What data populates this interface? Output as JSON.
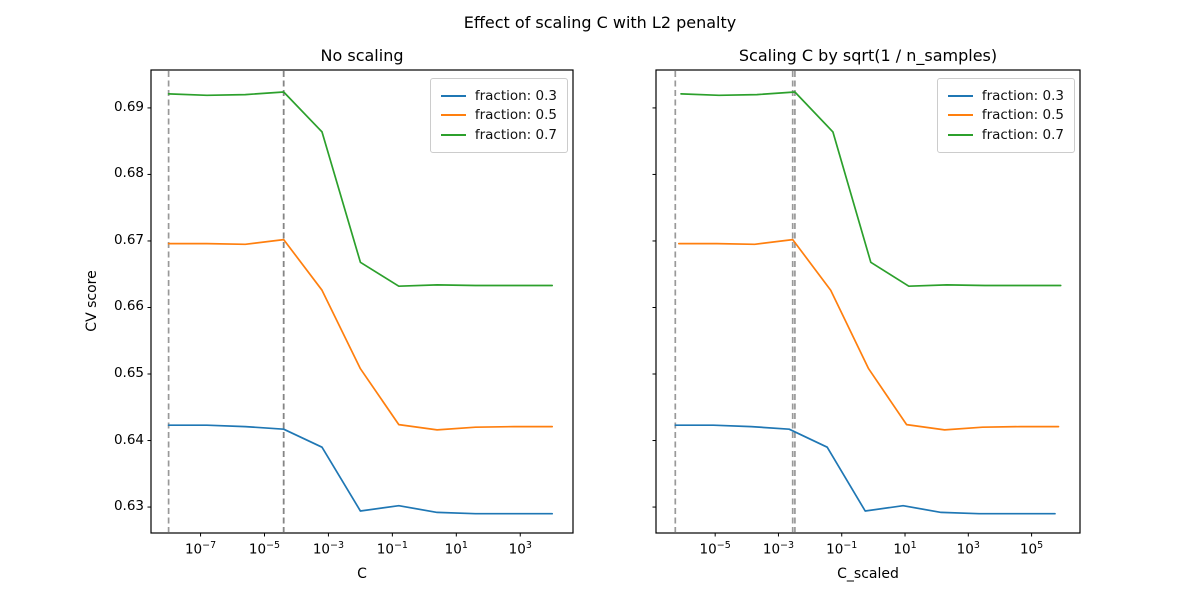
{
  "figure": {
    "title": "Effect of scaling C with L2 penalty",
    "background": "#ffffff"
  },
  "chart_data": [
    {
      "type": "line",
      "title": "No scaling",
      "xlabel": "C",
      "ylabel": "CV score",
      "x_scale": "log10",
      "xlim_log10": [
        -8.55,
        4.65
      ],
      "ylim": [
        0.6261,
        0.6957
      ],
      "grid": false,
      "legend_position": "upper right",
      "x_ticks": [
        {
          "log10": -7,
          "mantissa": "10",
          "exponent": "−7"
        },
        {
          "log10": -5,
          "mantissa": "10",
          "exponent": "−5"
        },
        {
          "log10": -3,
          "mantissa": "10",
          "exponent": "−3"
        },
        {
          "log10": -1,
          "mantissa": "10",
          "exponent": "−1"
        },
        {
          "log10": 1,
          "mantissa": "10",
          "exponent": "1"
        },
        {
          "log10": 3,
          "mantissa": "10",
          "exponent": "3"
        }
      ],
      "y_ticks": {
        "values": [
          0.63,
          0.64,
          0.65,
          0.66,
          0.67,
          0.68,
          0.69
        ],
        "labels": [
          "0.63",
          "0.64",
          "0.65",
          "0.66",
          "0.67",
          "0.68",
          "0.69"
        ],
        "labels_visible": true
      },
      "vlines": [
        {
          "x_log10": -8.0
        },
        {
          "x_log10": -4.4
        },
        {
          "x_log10": -4.4
        }
      ],
      "vline_style": {
        "color": "#808080",
        "opacity": 0.8,
        "dash": "6 3.5",
        "width": 1.7
      },
      "series": [
        {
          "name": "fraction: 0.3",
          "color": "#1f77b4",
          "x_log10": [
            -8,
            -6.8,
            -5.6,
            -4.4,
            -3.2,
            -2,
            -0.8,
            0.4,
            1.6,
            2.8,
            4
          ],
          "y": [
            0.6423,
            0.6423,
            0.6421,
            0.6417,
            0.639,
            0.6294,
            0.6302,
            0.6292,
            0.629,
            0.629,
            0.629
          ]
        },
        {
          "name": "fraction: 0.5",
          "color": "#ff7f0e",
          "x_log10": [
            -8,
            -6.8,
            -5.6,
            -4.4,
            -3.2,
            -2,
            -0.8,
            0.4,
            1.6,
            2.8,
            4
          ],
          "y": [
            0.6696,
            0.6696,
            0.6695,
            0.6702,
            0.6626,
            0.6508,
            0.6424,
            0.6416,
            0.642,
            0.6421,
            0.6421
          ]
        },
        {
          "name": "fraction: 0.7",
          "color": "#2ca02c",
          "x_log10": [
            -8,
            -6.8,
            -5.6,
            -4.4,
            -3.2,
            -2,
            -0.8,
            0.4,
            1.6,
            2.8,
            4
          ],
          "y": [
            0.6921,
            0.6919,
            0.692,
            0.6924,
            0.6864,
            0.6668,
            0.6632,
            0.6634,
            0.6633,
            0.6633,
            0.6633
          ]
        }
      ]
    },
    {
      "type": "line",
      "title": "Scaling C by sqrt(1 / n_samples)",
      "xlabel": "C_scaled",
      "ylabel": "",
      "x_scale": "log10",
      "xlim_log10": [
        -6.87,
        6.53
      ],
      "ylim": [
        0.6261,
        0.6957
      ],
      "grid": false,
      "legend_position": "upper right",
      "x_ticks": [
        {
          "log10": -5,
          "mantissa": "10",
          "exponent": "−5"
        },
        {
          "log10": -3,
          "mantissa": "10",
          "exponent": "−3"
        },
        {
          "log10": -1,
          "mantissa": "10",
          "exponent": "−1"
        },
        {
          "log10": 1,
          "mantissa": "10",
          "exponent": "1"
        },
        {
          "log10": 3,
          "mantissa": "10",
          "exponent": "3"
        },
        {
          "log10": 5,
          "mantissa": "10",
          "exponent": "5"
        }
      ],
      "y_ticks": {
        "values": [
          0.63,
          0.64,
          0.65,
          0.66,
          0.67,
          0.68,
          0.69
        ],
        "labels": [
          "0.63",
          "0.64",
          "0.65",
          "0.66",
          "0.67",
          "0.68",
          "0.69"
        ],
        "labels_visible": false
      },
      "vlines": [
        {
          "x_log10": -6.26
        },
        {
          "x_log10": -2.55
        },
        {
          "x_log10": -2.48
        }
      ],
      "vline_style": {
        "color": "#808080",
        "opacity": 0.8,
        "dash": "6 3.5",
        "width": 1.7
      },
      "series": [
        {
          "name": "fraction: 0.3",
          "color": "#1f77b4",
          "x_log10": [
            -6.26,
            -5.06,
            -3.86,
            -2.66,
            -1.46,
            -0.26,
            0.94,
            2.14,
            3.34,
            4.54,
            5.74
          ],
          "y": [
            0.6423,
            0.6423,
            0.6421,
            0.6417,
            0.639,
            0.6294,
            0.6302,
            0.6292,
            0.629,
            0.629,
            0.629
          ]
        },
        {
          "name": "fraction: 0.5",
          "color": "#ff7f0e",
          "x_log10": [
            -6.15,
            -4.95,
            -3.75,
            -2.55,
            -1.35,
            -0.15,
            1.05,
            2.25,
            3.45,
            4.65,
            5.85
          ],
          "y": [
            0.6696,
            0.6696,
            0.6695,
            0.6702,
            0.6626,
            0.6508,
            0.6424,
            0.6416,
            0.642,
            0.6421,
            0.6421
          ]
        },
        {
          "name": "fraction: 0.7",
          "color": "#2ca02c",
          "x_log10": [
            -6.08,
            -4.88,
            -3.68,
            -2.48,
            -1.28,
            -0.08,
            1.12,
            2.32,
            3.52,
            4.72,
            5.92
          ],
          "y": [
            0.6921,
            0.6919,
            0.692,
            0.6924,
            0.6864,
            0.6668,
            0.6632,
            0.6634,
            0.6633,
            0.6633,
            0.6633
          ]
        }
      ]
    }
  ]
}
